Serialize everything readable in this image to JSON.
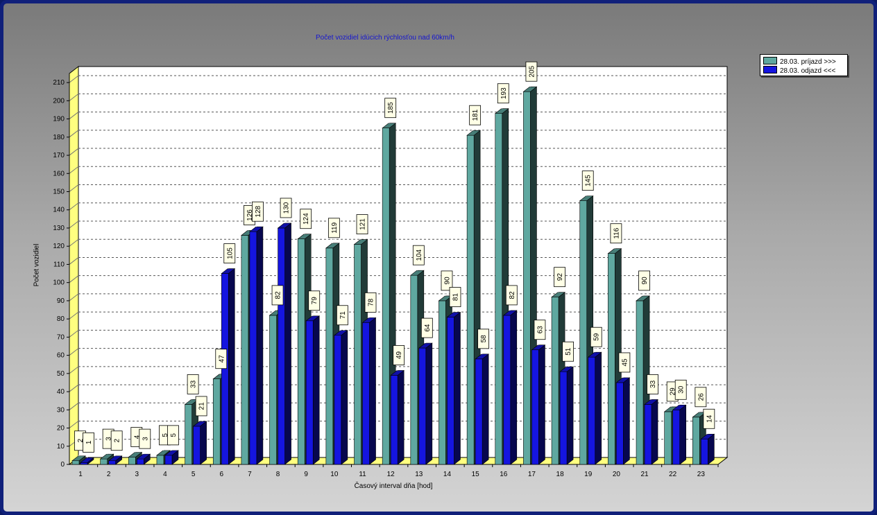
{
  "chart_data": {
    "type": "bar",
    "title": "Počet vozidiel idúcich rýchlosťou nad 60km/h",
    "xlabel": "Časový interval dňa [hod]",
    "ylabel": "Počet vozidiel",
    "categories": [
      "1",
      "2",
      "3",
      "4",
      "5",
      "6",
      "7",
      "8",
      "9",
      "10",
      "11",
      "12",
      "13",
      "14",
      "15",
      "16",
      "17",
      "18",
      "19",
      "20",
      "21",
      "22",
      "23"
    ],
    "ylim": [
      0,
      215
    ],
    "yticks": [
      0,
      10,
      20,
      30,
      40,
      50,
      60,
      70,
      80,
      90,
      100,
      110,
      120,
      130,
      140,
      150,
      160,
      170,
      180,
      190,
      200,
      210
    ],
    "grid": true,
    "legend_position": "top-right",
    "series": [
      {
        "name": "28.03.  príjazd >>>",
        "color": "#5fa8a0",
        "values": [
          2,
          3,
          4,
          5,
          33,
          47,
          126,
          82,
          124,
          119,
          121,
          185,
          104,
          90,
          181,
          193,
          205,
          92,
          145,
          116,
          90,
          29,
          26
        ]
      },
      {
        "name": "28.03.  odjazd <<<",
        "color": "#1515e0",
        "values": [
          1,
          2,
          3,
          5,
          21,
          105,
          128,
          130,
          79,
          71,
          78,
          49,
          64,
          81,
          58,
          82,
          63,
          51,
          59,
          45,
          33,
          30,
          14
        ]
      }
    ]
  }
}
